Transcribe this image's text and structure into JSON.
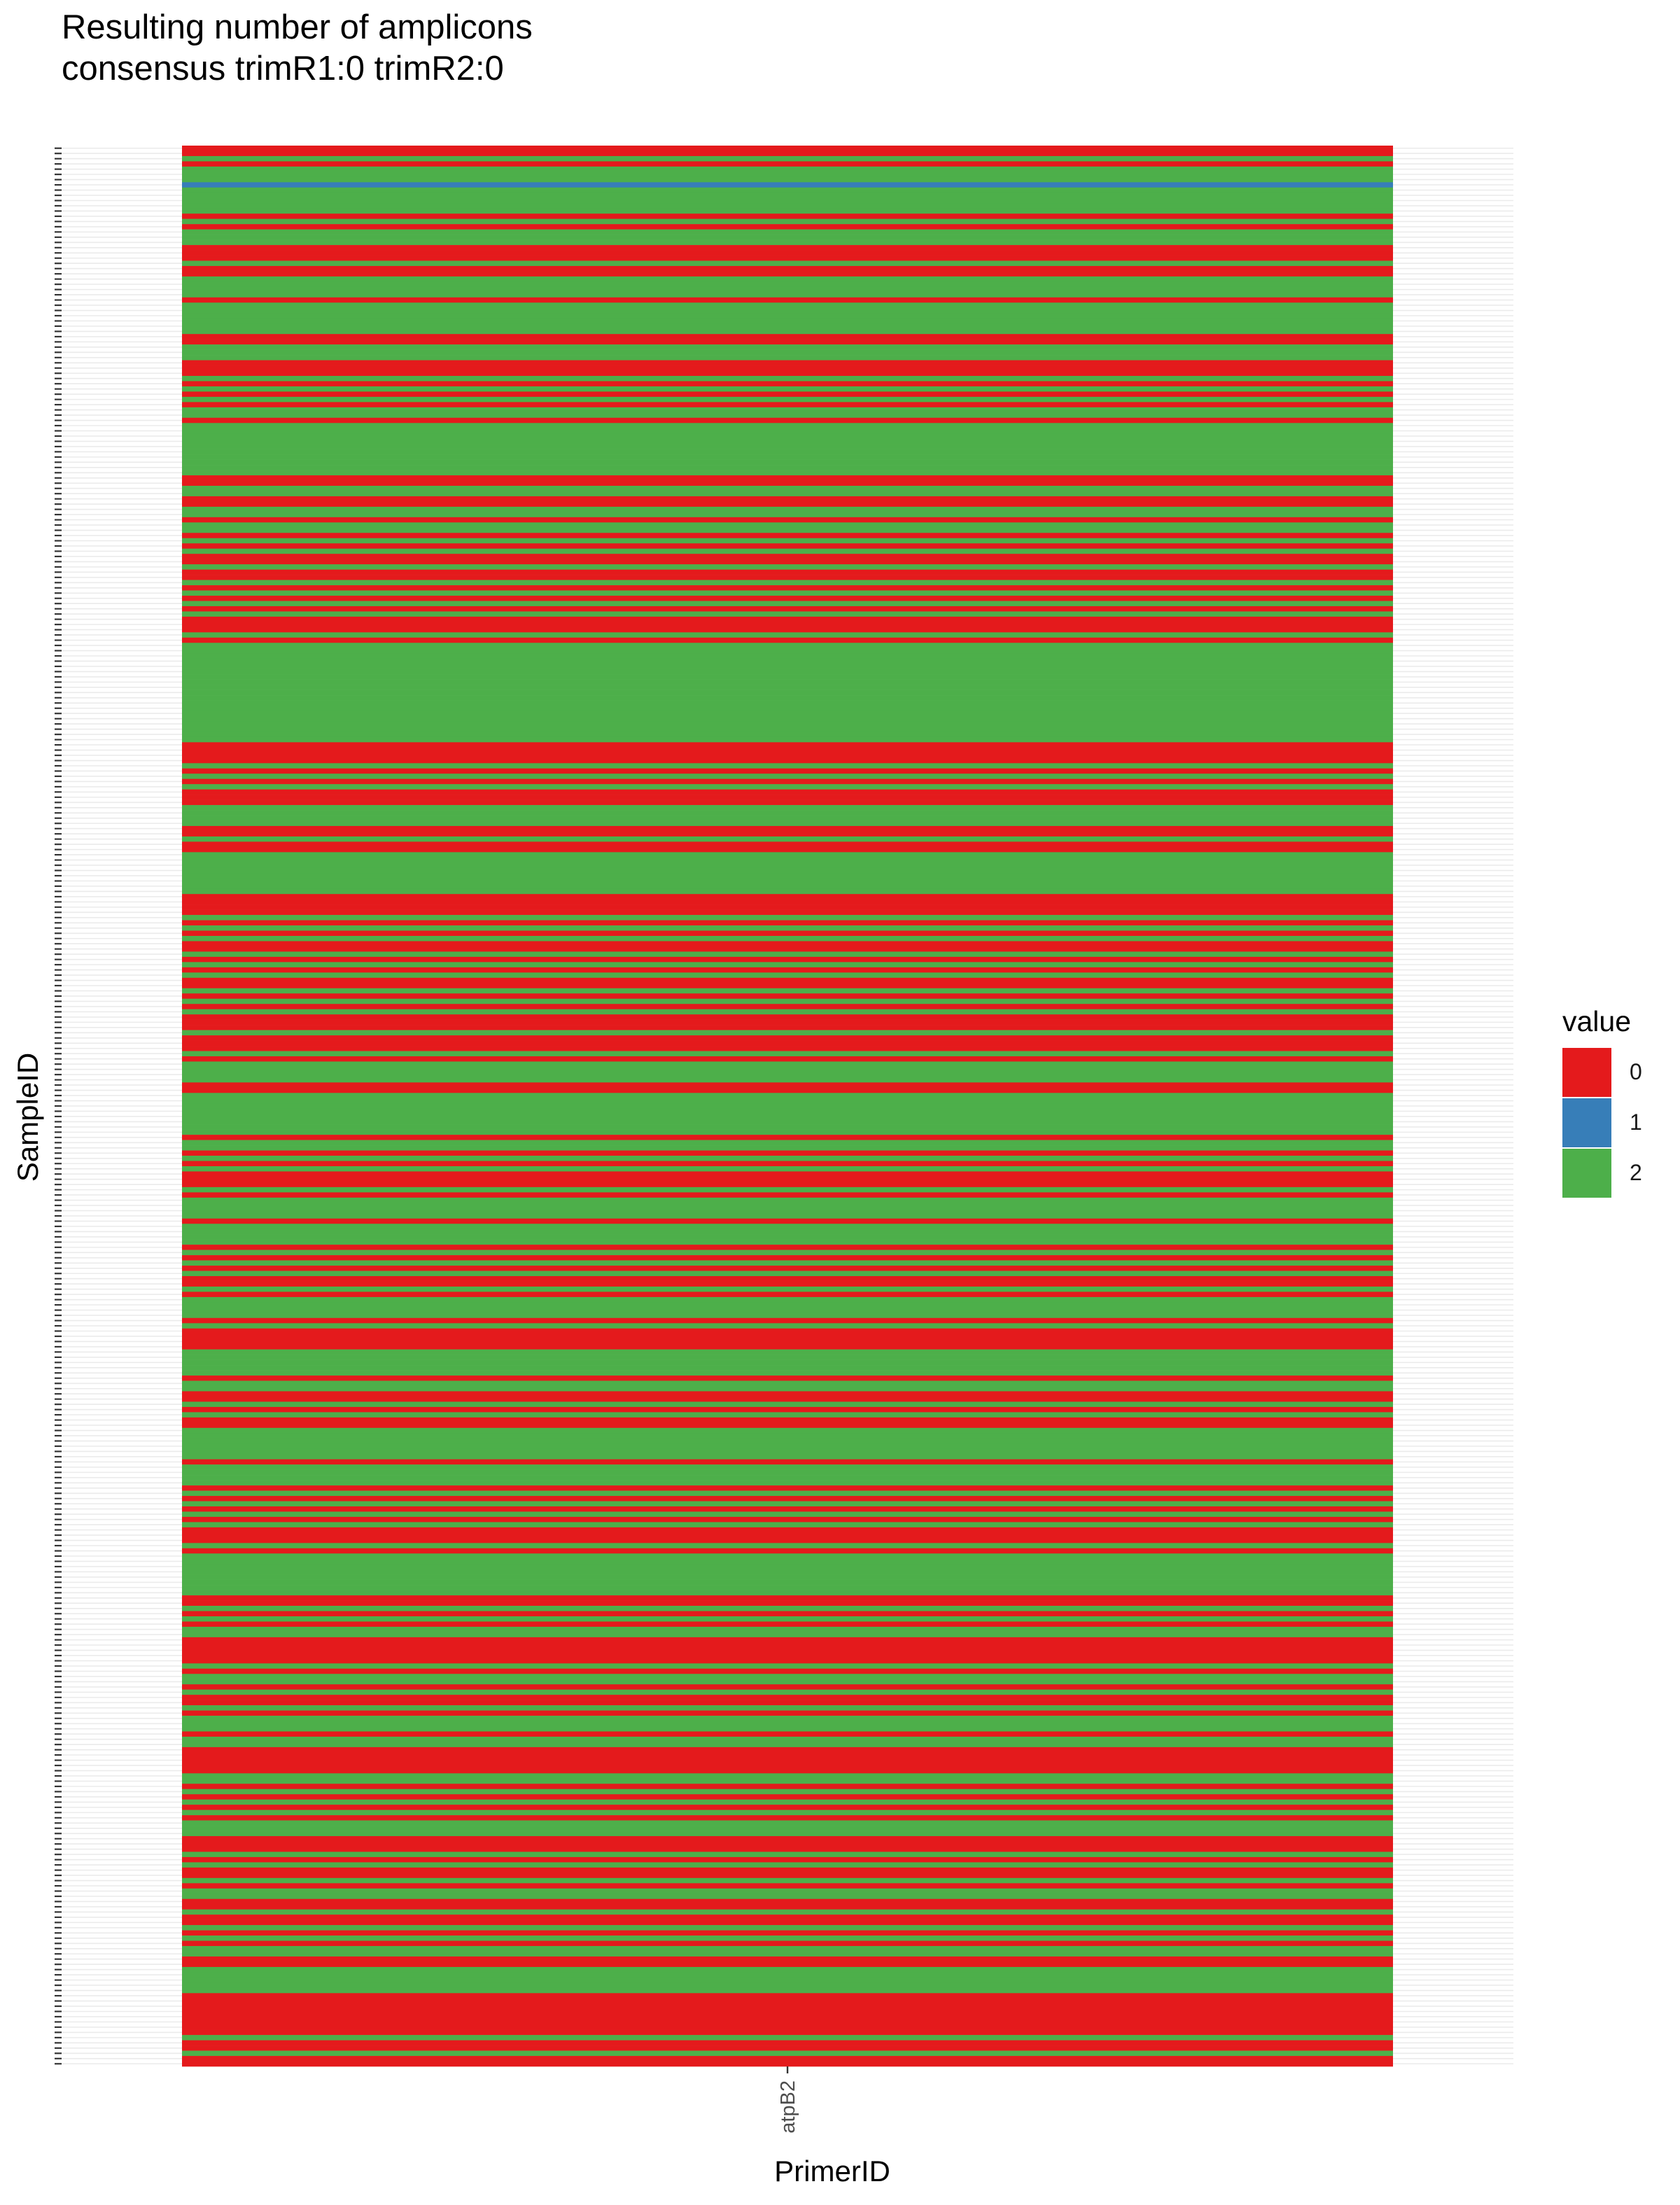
{
  "chart_data": {
    "type": "heatmap",
    "title": "Resulting number of amplicons",
    "subtitle": "consensus trimR1:0 trimR2:0",
    "xlabel": "PrimerID",
    "ylabel": "SampleID",
    "x_categories": [
      "atpB2"
    ],
    "legend": {
      "title": "value",
      "position": "right",
      "entries": [
        {
          "label": "0",
          "color": "#e41a1c"
        },
        {
          "label": "1",
          "color": "#377eb8"
        },
        {
          "label": "2",
          "color": "#4daf4a"
        }
      ]
    },
    "colors": {
      "0": "#e41a1c",
      "1": "#377eb8",
      "2": "#4daf4a"
    },
    "grid": true,
    "values": [
      0,
      0,
      2,
      0,
      2,
      2,
      2,
      1,
      2,
      2,
      2,
      2,
      2,
      0,
      2,
      0,
      2,
      2,
      2,
      0,
      0,
      0,
      2,
      0,
      0,
      2,
      2,
      2,
      2,
      0,
      2,
      2,
      2,
      2,
      2,
      2,
      0,
      0,
      2,
      2,
      2,
      0,
      0,
      0,
      2,
      0,
      2,
      0,
      2,
      0,
      2,
      2,
      0,
      2,
      2,
      2,
      2,
      2,
      2,
      2,
      2,
      2,
      2,
      0,
      0,
      2,
      2,
      0,
      0,
      2,
      2,
      0,
      2,
      2,
      0,
      2,
      0,
      2,
      0,
      0,
      2,
      0,
      0,
      2,
      0,
      2,
      0,
      2,
      0,
      2,
      0,
      0,
      0,
      2,
      0,
      2,
      2,
      2,
      2,
      2,
      2,
      2,
      2,
      2,
      2,
      2,
      2,
      2,
      2,
      2,
      2,
      2,
      2,
      2,
      0,
      0,
      0,
      0,
      2,
      0,
      2,
      0,
      2,
      0,
      0,
      0,
      2,
      2,
      2,
      2,
      0,
      0,
      2,
      0,
      0,
      2,
      2,
      2,
      2,
      2,
      2,
      2,
      2,
      0,
      0,
      0,
      0,
      2,
      0,
      2,
      0,
      2,
      0,
      0,
      2,
      0,
      2,
      0,
      2,
      0,
      0,
      2,
      0,
      2,
      0,
      2,
      0,
      0,
      0,
      2,
      0,
      0,
      0,
      2,
      0,
      2,
      2,
      2,
      2,
      0,
      0,
      2,
      2,
      2,
      2,
      2,
      2,
      2,
      2,
      0,
      2,
      2,
      0,
      2,
      0,
      2,
      0,
      0,
      0,
      2,
      0,
      2,
      2,
      2,
      2,
      0,
      2,
      2,
      2,
      2,
      0,
      2,
      0,
      2,
      0,
      2,
      0,
      0,
      2,
      0,
      2,
      2,
      2,
      2,
      0,
      2,
      0,
      0,
      0,
      0,
      2,
      2,
      2,
      2,
      2,
      0,
      2,
      2,
      0,
      0,
      2,
      0,
      2,
      0,
      0,
      2,
      2,
      2,
      2,
      2,
      2,
      0,
      2,
      2,
      2,
      2,
      0,
      2,
      0,
      2,
      0,
      2,
      0,
      2,
      0,
      0,
      0,
      2,
      0,
      2,
      2,
      2,
      2,
      2,
      2,
      2,
      2,
      0,
      0,
      2,
      0,
      2,
      0,
      2,
      2,
      0,
      0,
      0,
      0,
      0,
      2,
      0,
      2,
      2,
      0,
      2,
      0,
      0,
      2,
      0,
      2,
      2,
      2,
      0,
      2,
      2,
      0,
      0,
      0,
      0,
      0,
      2,
      2,
      0,
      2,
      0,
      2,
      0,
      2,
      0,
      2,
      2,
      2,
      0,
      0,
      0,
      2,
      0,
      2,
      0,
      0,
      2,
      0,
      2,
      2,
      0,
      0,
      2,
      0,
      0,
      2,
      0,
      2,
      0,
      2,
      2,
      0,
      0,
      2,
      2,
      2,
      2,
      2,
      0,
      0,
      0,
      0,
      0,
      0,
      0,
      0,
      2,
      0,
      0,
      2,
      0,
      0
    ]
  }
}
